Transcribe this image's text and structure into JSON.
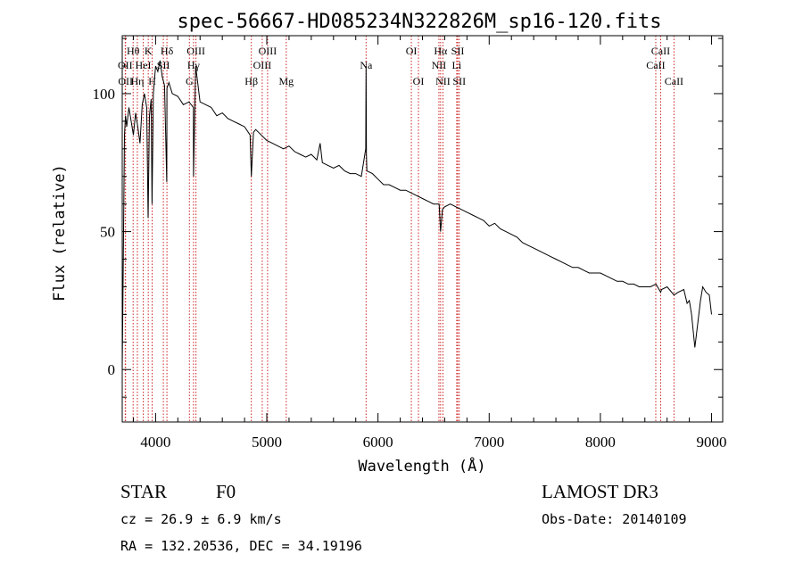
{
  "chart_data": {
    "type": "line",
    "title": "spec-56667-HD085234N322826M_sp16-120.fits",
    "xlabel": "Wavelength (Å)",
    "ylabel": "Flux (relative)",
    "xlim": [
      3700,
      9100
    ],
    "ylim": [
      -19,
      121
    ],
    "xticks": [
      4000,
      5000,
      6000,
      7000,
      8000,
      9000
    ],
    "yticks": [
      0,
      50,
      100
    ],
    "series": [
      {
        "name": "spectrum",
        "x": [
          3700,
          3710,
          3720,
          3730,
          3740,
          3760,
          3780,
          3800,
          3820,
          3840,
          3860,
          3880,
          3900,
          3920,
          3933,
          3945,
          3960,
          3968,
          3980,
          4000,
          4020,
          4040,
          4060,
          4080,
          4100,
          4102,
          4120,
          4150,
          4200,
          4250,
          4300,
          4340,
          4341,
          4360,
          4400,
          4450,
          4500,
          4550,
          4600,
          4650,
          4700,
          4750,
          4800,
          4850,
          4861,
          4880,
          4900,
          4950,
          5000,
          5050,
          5100,
          5150,
          5200,
          5250,
          5300,
          5350,
          5400,
          5450,
          5480,
          5500,
          5550,
          5600,
          5650,
          5700,
          5750,
          5800,
          5850,
          5890,
          5893,
          5896,
          5900,
          5950,
          6000,
          6050,
          6100,
          6150,
          6200,
          6250,
          6300,
          6350,
          6400,
          6450,
          6500,
          6550,
          6563,
          6580,
          6600,
          6650,
          6700,
          6750,
          6800,
          6850,
          6900,
          6950,
          7000,
          7050,
          7100,
          7150,
          7200,
          7250,
          7300,
          7350,
          7400,
          7450,
          7500,
          7550,
          7600,
          7650,
          7700,
          7750,
          7800,
          7850,
          7900,
          7950,
          8000,
          8050,
          8100,
          8150,
          8200,
          8250,
          8300,
          8350,
          8400,
          8450,
          8500,
          8542,
          8550,
          8600,
          8662,
          8700,
          8750,
          8780,
          8800,
          8820,
          8850,
          8900,
          8920,
          8950,
          8980,
          9000
        ],
        "values": [
          0,
          40,
          85,
          92,
          88,
          95,
          90,
          85,
          93,
          88,
          82,
          96,
          100,
          95,
          55,
          92,
          98,
          60,
          100,
          110,
          108,
          112,
          106,
          103,
          68,
          102,
          104,
          100,
          99,
          96,
          97,
          95,
          70,
          110,
          97,
          96,
          95,
          92,
          93,
          91,
          90,
          89,
          88,
          85,
          70,
          86,
          87,
          85,
          83,
          82,
          81,
          80,
          81,
          79,
          78,
          77,
          78,
          76,
          82,
          75,
          74,
          73,
          74,
          72,
          71,
          71,
          70,
          80,
          110,
          78,
          72,
          71,
          69,
          67,
          67,
          66,
          65,
          65,
          64,
          63,
          62,
          61,
          60,
          60,
          50,
          58,
          59,
          60,
          59,
          58,
          57,
          56,
          55,
          54,
          52,
          53,
          51,
          50,
          49,
          48,
          46,
          45,
          44,
          43,
          42,
          41,
          40,
          39,
          38,
          37,
          37,
          36,
          35,
          35,
          35,
          34,
          33,
          32,
          32,
          31,
          31,
          30,
          30,
          30,
          31,
          28,
          29,
          30,
          27,
          28,
          29,
          24,
          25,
          20,
          8,
          25,
          30,
          28,
          27,
          20
        ]
      }
    ],
    "lines": [
      {
        "name": "Hθ",
        "wave": 3798,
        "tier": 1
      },
      {
        "name": "OII",
        "wave": 3727,
        "tier": 2
      },
      {
        "name": "OII",
        "wave": 3730,
        "tier": 3
      },
      {
        "name": "K",
        "wave": 3934,
        "tier": 1
      },
      {
        "name": "HeI",
        "wave": 3889,
        "tier": 2
      },
      {
        "name": "Hη",
        "wave": 3836,
        "tier": 3
      },
      {
        "name": "Hδ",
        "wave": 4102,
        "tier": 1
      },
      {
        "name": "SII",
        "wave": 4070,
        "tier": 2
      },
      {
        "name": "H",
        "wave": 3969,
        "tier": 3
      },
      {
        "name": "OIII",
        "wave": 4363,
        "tier": 1
      },
      {
        "name": "Hγ",
        "wave": 4341,
        "tier": 2
      },
      {
        "name": "G",
        "wave": 4304,
        "tier": 3
      },
      {
        "name": "OIII",
        "wave": 5007,
        "tier": 1
      },
      {
        "name": "OIII",
        "wave": 4959,
        "tier": 2
      },
      {
        "name": "Hβ",
        "wave": 4861,
        "tier": 3
      },
      {
        "name": "Mg",
        "wave": 5175,
        "tier": 3
      },
      {
        "name": "Na",
        "wave": 5893,
        "tier": 2
      },
      {
        "name": "OI",
        "wave": 6300,
        "tier": 1
      },
      {
        "name": "OI",
        "wave": 6364,
        "tier": 3
      },
      {
        "name": "Hα",
        "wave": 6563,
        "tier": 1
      },
      {
        "name": "SII",
        "wave": 6717,
        "tier": 1
      },
      {
        "name": "NII",
        "wave": 6548,
        "tier": 2
      },
      {
        "name": "Li",
        "wave": 6708,
        "tier": 2
      },
      {
        "name": "NII",
        "wave": 6584,
        "tier": 3
      },
      {
        "name": "SII",
        "wave": 6731,
        "tier": 3
      },
      {
        "name": "CaII",
        "wave": 8542,
        "tier": 1
      },
      {
        "name": "CaII",
        "wave": 8498,
        "tier": 2
      },
      {
        "name": "CaII",
        "wave": 8662,
        "tier": 3
      }
    ]
  },
  "info": {
    "object_class": "STAR",
    "subclass": "F0",
    "survey": "LAMOST DR3",
    "redshift": "cz = 26.9 ± 6.9 km/s",
    "obs_date": "Obs-Date: 20140109",
    "coords": "RA = 132.20536, DEC =  34.19196"
  },
  "colors": {
    "line_marker": "#cc2222",
    "spectrum": "#000000"
  }
}
